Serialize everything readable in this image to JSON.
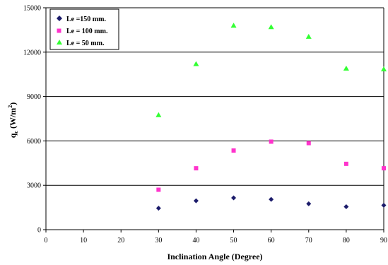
{
  "chart_data": {
    "type": "scatter",
    "xlabel": "Inclination Angle (Degree)",
    "ylabel": "qc (W/m2)",
    "ylabel_parts": {
      "q": "q",
      "sub": "c",
      "unit": " (W/m",
      "sup": "2",
      "close": ")"
    },
    "xlim": [
      0,
      90
    ],
    "ylim": [
      0,
      15000
    ],
    "x_ticks": [
      0,
      10,
      20,
      30,
      40,
      50,
      60,
      70,
      80,
      90
    ],
    "y_ticks": [
      0,
      3000,
      6000,
      9000,
      12000,
      15000
    ],
    "grid": "horizontal",
    "legend_position": "top-left",
    "series": [
      {
        "name": "Le =150 mm.",
        "marker": "diamond",
        "color": "#1c1c6b",
        "x": [
          30,
          40,
          50,
          60,
          70,
          80,
          90
        ],
        "y": [
          1450,
          1950,
          2150,
          2050,
          1750,
          1550,
          1650
        ]
      },
      {
        "name": "Le = 100 mm.",
        "marker": "square",
        "color": "#ff33cc",
        "x": [
          30,
          40,
          50,
          60,
          70,
          80,
          90
        ],
        "y": [
          2700,
          4150,
          5350,
          5950,
          5850,
          4450,
          4150
        ]
      },
      {
        "name": "Le = 50 mm.",
        "marker": "triangle",
        "color": "#33ff33",
        "x": [
          30,
          40,
          50,
          60,
          70,
          80,
          90
        ],
        "y": [
          7750,
          11200,
          13800,
          13700,
          13050,
          10900,
          10850
        ]
      }
    ]
  }
}
